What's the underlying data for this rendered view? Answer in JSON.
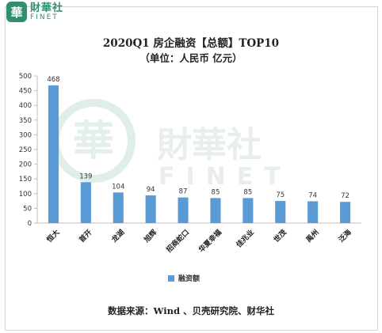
{
  "logo": {
    "mark": "華",
    "name_cn": "財華社",
    "name_en": "FINET"
  },
  "watermark": {
    "name_cn": "財華社",
    "name_en": "FINET"
  },
  "title": "2020Q1 房企融资【总额】TOP10",
  "subtitle": "（单位：人民币 亿元）",
  "source": "数据来源：Wind 、贝壳研究院、财华社",
  "colors": {
    "bar": "#5b9bd5",
    "brand": "#2f8f6e"
  },
  "chart_data": {
    "type": "bar",
    "title": "2020Q1 房企融资【总额】TOP10",
    "subtitle": "（单位：人民币 亿元）",
    "categories": [
      "恒大",
      "首开",
      "龙湖",
      "旭辉",
      "招商蛇口",
      "华夏幸福",
      "佳兆业",
      "世茂",
      "禹州",
      "泛海"
    ],
    "series": [
      {
        "name": "融资额",
        "values": [
          468,
          139,
          104,
          94,
          87,
          85,
          85,
          75,
          74,
          72
        ]
      }
    ],
    "data_labels": [
      "468",
      "139",
      "104",
      "94",
      "87",
      "85",
      "85",
      "75",
      "74",
      "72"
    ],
    "ylim": [
      0,
      500
    ],
    "yticks": [
      0,
      50,
      100,
      150,
      200,
      250,
      300,
      350,
      400,
      450,
      500
    ],
    "grid": false,
    "legend": "bottom"
  }
}
